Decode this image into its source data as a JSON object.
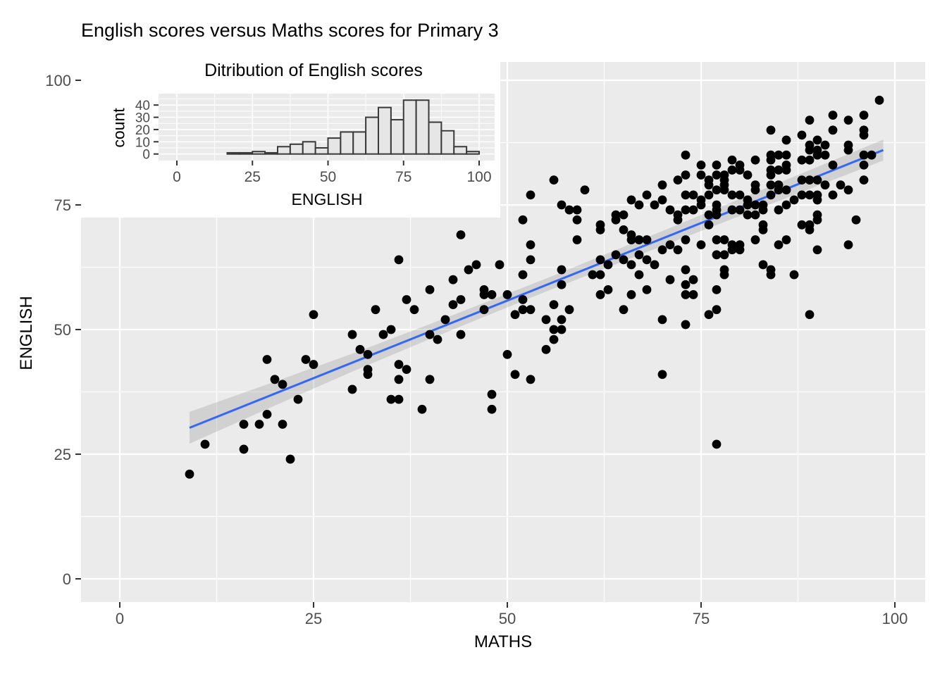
{
  "colors": {
    "panel_bg": "#EBEBEB",
    "grid": "#FFFFFF",
    "point": "#000000",
    "smooth_line": "#3366FF",
    "ribbon": "#9A9A9A",
    "ribbon_opacity": 0.32,
    "bar_fill": "#E6E6E6",
    "bar_stroke": "#3A3A3A",
    "tick_text": "#4D4D4D",
    "tick_mark": "#333333",
    "inset_bg": "#FFFFFF"
  },
  "chart_data": [
    {
      "type": "scatter",
      "title": "English scores versus Maths scores for Primary 3",
      "xlabel": "MATHS",
      "ylabel": "ENGLISH",
      "xticks": [
        "0",
        "25",
        "50",
        "75",
        "100"
      ],
      "yticks": [
        "0",
        "25",
        "50",
        "75",
        "100"
      ],
      "xtick_values": [
        0,
        25,
        50,
        75,
        100
      ],
      "ytick_values": [
        0,
        25,
        50,
        75,
        100
      ],
      "xminor_values": [
        12.5,
        37.5,
        62.5,
        87.5
      ],
      "yminor_values": [
        12.5,
        37.5,
        62.5,
        87.5
      ],
      "xlim": [
        -5,
        104.4
      ],
      "ylim": [
        -4.7,
        103.7
      ],
      "grid": true,
      "legend": "none",
      "smooth": {
        "x0": 9,
        "y0": 30.3,
        "x1": 98.5,
        "y1": 86.0,
        "band_halfwidth": [
          [
            9,
            3.2
          ],
          [
            20,
            2.4
          ],
          [
            30,
            1.8
          ],
          [
            40,
            1.5
          ],
          [
            55,
            1.3
          ],
          [
            70,
            1.5
          ],
          [
            85,
            1.8
          ],
          [
            98.5,
            2.1
          ]
        ]
      },
      "points": [
        [
          9,
          21
        ],
        [
          11,
          27
        ],
        [
          16,
          26
        ],
        [
          16,
          31
        ],
        [
          18,
          31
        ],
        [
          21,
          31
        ],
        [
          19,
          33
        ],
        [
          22,
          24
        ],
        [
          19,
          44
        ],
        [
          20,
          40
        ],
        [
          21,
          39
        ],
        [
          23,
          36
        ],
        [
          24,
          44
        ],
        [
          25,
          43
        ],
        [
          25,
          53
        ],
        [
          30,
          49
        ],
        [
          30,
          38
        ],
        [
          31,
          46
        ],
        [
          32,
          45
        ],
        [
          32,
          42
        ],
        [
          32,
          41
        ],
        [
          33,
          54
        ],
        [
          34,
          49
        ],
        [
          35,
          50
        ],
        [
          35,
          36
        ],
        [
          36,
          36
        ],
        [
          36,
          43
        ],
        [
          36,
          40
        ],
        [
          37,
          42
        ],
        [
          37,
          56
        ],
        [
          38,
          54
        ],
        [
          39,
          34
        ],
        [
          40,
          58
        ],
        [
          40,
          40
        ],
        [
          36,
          64
        ],
        [
          43,
          60
        ],
        [
          44,
          56
        ],
        [
          43,
          55
        ],
        [
          47,
          58
        ],
        [
          47,
          57
        ],
        [
          48,
          57
        ],
        [
          50,
          57
        ],
        [
          42,
          52
        ],
        [
          40,
          49
        ],
        [
          41,
          48
        ],
        [
          44,
          49
        ],
        [
          47,
          54
        ],
        [
          52,
          61
        ],
        [
          57,
          62
        ],
        [
          57,
          59
        ],
        [
          52,
          56
        ],
        [
          51,
          53
        ],
        [
          52,
          54
        ],
        [
          53,
          54
        ],
        [
          56,
          55
        ],
        [
          55,
          52
        ],
        [
          57,
          52
        ],
        [
          58,
          54
        ],
        [
          56,
          50
        ],
        [
          57,
          50
        ],
        [
          56,
          48
        ],
        [
          55,
          46
        ],
        [
          50,
          45
        ],
        [
          51,
          41
        ],
        [
          53,
          40
        ],
        [
          48,
          37
        ],
        [
          48,
          34
        ],
        [
          61,
          61
        ],
        [
          62,
          61
        ],
        [
          62,
          57
        ],
        [
          63,
          58
        ],
        [
          66,
          57
        ],
        [
          67,
          61
        ],
        [
          68,
          58
        ],
        [
          65,
          54
        ],
        [
          70,
          52
        ],
        [
          70,
          41
        ],
        [
          71,
          60
        ],
        [
          45,
          62
        ],
        [
          73,
          62
        ],
        [
          78,
          62
        ],
        [
          78,
          61
        ],
        [
          84,
          62
        ],
        [
          84,
          61
        ],
        [
          87,
          61
        ],
        [
          74,
          60
        ],
        [
          73,
          59
        ],
        [
          73,
          57
        ],
        [
          74,
          57
        ],
        [
          77,
          58
        ],
        [
          77,
          54
        ],
        [
          76,
          53
        ],
        [
          89,
          53
        ],
        [
          73,
          51
        ],
        [
          77,
          27
        ],
        [
          56,
          80
        ],
        [
          60,
          78
        ],
        [
          53,
          77
        ],
        [
          57,
          75
        ],
        [
          58,
          74
        ],
        [
          59,
          74
        ],
        [
          59,
          72
        ],
        [
          52,
          72
        ],
        [
          44,
          69
        ],
        [
          62,
          71
        ],
        [
          62,
          70
        ],
        [
          64,
          73
        ],
        [
          65,
          73
        ],
        [
          66,
          76
        ],
        [
          67,
          75
        ],
        [
          64,
          72
        ],
        [
          65,
          70
        ],
        [
          66,
          69
        ],
        [
          66,
          68
        ],
        [
          68,
          77
        ],
        [
          69,
          75
        ],
        [
          70,
          79
        ],
        [
          72,
          80
        ],
        [
          70,
          76
        ],
        [
          71,
          74
        ],
        [
          72,
          73
        ],
        [
          59,
          68
        ],
        [
          53,
          67
        ],
        [
          53,
          64
        ],
        [
          49,
          63
        ],
        [
          46,
          63
        ],
        [
          62,
          64
        ],
        [
          63,
          63
        ],
        [
          64,
          65
        ],
        [
          65,
          64
        ],
        [
          66,
          63
        ],
        [
          67,
          68
        ],
        [
          68,
          68
        ],
        [
          67,
          65
        ],
        [
          68,
          64
        ],
        [
          69,
          63
        ],
        [
          70,
          66
        ],
        [
          71,
          67
        ],
        [
          72,
          66
        ],
        [
          72,
          72
        ],
        [
          89,
          92
        ],
        [
          84,
          90
        ],
        [
          86,
          88
        ],
        [
          88,
          89
        ],
        [
          89,
          87
        ],
        [
          89,
          86
        ],
        [
          73,
          85
        ],
        [
          84,
          85
        ],
        [
          84,
          84
        ],
        [
          85,
          85
        ],
        [
          86,
          85
        ],
        [
          82,
          84
        ],
        [
          88,
          84
        ],
        [
          89,
          84
        ],
        [
          79,
          84
        ],
        [
          80,
          83
        ],
        [
          79,
          82
        ],
        [
          80,
          82
        ],
        [
          77,
          83
        ],
        [
          77,
          81
        ],
        [
          75,
          83
        ],
        [
          75,
          81
        ],
        [
          73,
          81
        ],
        [
          76,
          80
        ],
        [
          78,
          81
        ],
        [
          78,
          80
        ],
        [
          81,
          81
        ],
        [
          84,
          82
        ],
        [
          84,
          81
        ],
        [
          85,
          82
        ],
        [
          86,
          83
        ],
        [
          86,
          82
        ],
        [
          76,
          79
        ],
        [
          78,
          79
        ],
        [
          77,
          78
        ],
        [
          78,
          78
        ],
        [
          74,
          77
        ],
        [
          73,
          77
        ],
        [
          75,
          76
        ],
        [
          76,
          77
        ],
        [
          80,
          77
        ],
        [
          79,
          77
        ],
        [
          82,
          79
        ],
        [
          81,
          76
        ],
        [
          82,
          78
        ],
        [
          84,
          79
        ],
        [
          84,
          77
        ],
        [
          85,
          79
        ],
        [
          85,
          78
        ],
        [
          86,
          78
        ],
        [
          88,
          80
        ],
        [
          89,
          80
        ],
        [
          88,
          77
        ],
        [
          89,
          77
        ],
        [
          87,
          76
        ],
        [
          81,
          75
        ],
        [
          82,
          75
        ],
        [
          83,
          75
        ],
        [
          85,
          74
        ],
        [
          83,
          74
        ],
        [
          77,
          75
        ],
        [
          77,
          74
        ],
        [
          74,
          74
        ],
        [
          75,
          75
        ],
        [
          73,
          74
        ],
        [
          76,
          73
        ],
        [
          77,
          73
        ],
        [
          79,
          74
        ],
        [
          80,
          74
        ],
        [
          81,
          73
        ],
        [
          82,
          73
        ],
        [
          83,
          71
        ],
        [
          86,
          75
        ],
        [
          76,
          71
        ],
        [
          77,
          68
        ],
        [
          78,
          68
        ],
        [
          79,
          67
        ],
        [
          79,
          66
        ],
        [
          80,
          67
        ],
        [
          80,
          66
        ],
        [
          77,
          65
        ],
        [
          78,
          65
        ],
        [
          75,
          67
        ],
        [
          73,
          68
        ],
        [
          82,
          68
        ],
        [
          83,
          70
        ],
        [
          85,
          67
        ],
        [
          86,
          68
        ],
        [
          88,
          71
        ],
        [
          89,
          71
        ],
        [
          89,
          70
        ],
        [
          83,
          63
        ],
        [
          98,
          96
        ],
        [
          92,
          93
        ],
        [
          96,
          93
        ],
        [
          94,
          92
        ],
        [
          92,
          90
        ],
        [
          96,
          90
        ],
        [
          96,
          89
        ],
        [
          90,
          88
        ],
        [
          91,
          87
        ],
        [
          90,
          86
        ],
        [
          90,
          85
        ],
        [
          91,
          85
        ],
        [
          94,
          87
        ],
        [
          94,
          86
        ],
        [
          97,
          85
        ],
        [
          96,
          85
        ],
        [
          96,
          83
        ],
        [
          92,
          83
        ],
        [
          90,
          80
        ],
        [
          91,
          79
        ],
        [
          93,
          79
        ],
        [
          94,
          78
        ],
        [
          96,
          80
        ],
        [
          90,
          77
        ],
        [
          90,
          76
        ],
        [
          92,
          77
        ],
        [
          90,
          73
        ],
        [
          90,
          72
        ],
        [
          95,
          72
        ],
        [
          94,
          67
        ],
        [
          90,
          66
        ]
      ]
    },
    {
      "type": "bar",
      "title": "Ditribution of English scores",
      "xlabel": "ENGLISH",
      "ylabel": "count",
      "xticks": [
        "0",
        "25",
        "50",
        "75",
        "100"
      ],
      "yticks": [
        "0",
        "10",
        "20",
        "30",
        "40"
      ],
      "xtick_values": [
        0,
        25,
        50,
        75,
        100
      ],
      "ytick_values": [
        0,
        10,
        20,
        30,
        40
      ],
      "xminor_values": [
        12.5,
        37.5,
        62.5,
        87.5
      ],
      "yminor_values": [
        5,
        15,
        25,
        35,
        45
      ],
      "bin_start": 16.667,
      "bin_width": 4.1667,
      "counts": [
        1,
        1,
        2,
        1,
        6,
        8,
        10,
        5,
        13,
        18,
        18,
        30,
        38,
        28,
        44,
        44,
        26,
        19,
        6,
        2
      ],
      "ylim": [
        0,
        49
      ],
      "grid": true
    }
  ]
}
